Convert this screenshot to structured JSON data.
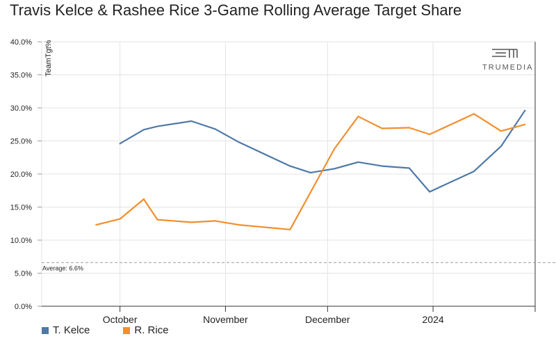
{
  "title": "Travis Kelce & Rashee Rice 3-Game Rolling Average Target Share",
  "logo": {
    "text": "TRUMEDIA",
    "icon": "trumedia-logo-icon"
  },
  "chart_data": {
    "type": "line",
    "ylabel": "TeamTgt%",
    "ylim": [
      0,
      40
    ],
    "y_ticks": [
      {
        "value": 0,
        "label": "0.0%"
      },
      {
        "value": 5,
        "label": "5.0%"
      },
      {
        "value": 10,
        "label": "10.0%"
      },
      {
        "value": 15,
        "label": "15.0%"
      },
      {
        "value": 20,
        "label": "20.0%"
      },
      {
        "value": 25,
        "label": "25.0%"
      },
      {
        "value": 30,
        "label": "30.0%"
      },
      {
        "value": 35,
        "label": "35.0%"
      },
      {
        "value": 40,
        "label": "40.0%"
      }
    ],
    "xlim": [
      "2023-09-08",
      "2024-01-31"
    ],
    "x_ticks": [
      {
        "date": "2023-10-01",
        "label": "October"
      },
      {
        "date": "2023-11-01",
        "label": "November"
      },
      {
        "date": "2023-12-01",
        "label": "December"
      },
      {
        "date": "2024-01-01",
        "label": "2024"
      }
    ],
    "grid": true,
    "reference_line": {
      "value": 6.6,
      "label": "Average: 6.6%"
    },
    "legend_position": "bottom-left",
    "series": [
      {
        "name": "T. Kelce",
        "color": "#4e79a7",
        "points": [
          {
            "x": "2023-10-01",
            "y": 24.6
          },
          {
            "x": "2023-10-08",
            "y": 26.7
          },
          {
            "x": "2023-10-12",
            "y": 27.2
          },
          {
            "x": "2023-10-22",
            "y": 28.0
          },
          {
            "x": "2023-10-29",
            "y": 26.8
          },
          {
            "x": "2023-11-05",
            "y": 24.8
          },
          {
            "x": "2023-11-20",
            "y": 21.2
          },
          {
            "x": "2023-11-26",
            "y": 20.2
          },
          {
            "x": "2023-12-03",
            "y": 20.8
          },
          {
            "x": "2023-12-10",
            "y": 21.8
          },
          {
            "x": "2023-12-17",
            "y": 21.2
          },
          {
            "x": "2023-12-25",
            "y": 20.9
          },
          {
            "x": "2023-12-31",
            "y": 17.3
          },
          {
            "x": "2024-01-13",
            "y": 20.4
          },
          {
            "x": "2024-01-21",
            "y": 24.2
          },
          {
            "x": "2024-01-28",
            "y": 29.6
          }
        ]
      },
      {
        "name": "R. Rice",
        "color": "#f28e2b",
        "points": [
          {
            "x": "2023-09-24",
            "y": 12.3
          },
          {
            "x": "2023-10-01",
            "y": 13.2
          },
          {
            "x": "2023-10-08",
            "y": 16.2
          },
          {
            "x": "2023-10-12",
            "y": 13.1
          },
          {
            "x": "2023-10-22",
            "y": 12.7
          },
          {
            "x": "2023-10-29",
            "y": 12.9
          },
          {
            "x": "2023-11-05",
            "y": 12.3
          },
          {
            "x": "2023-11-20",
            "y": 11.6
          },
          {
            "x": "2023-12-03",
            "y": 23.8
          },
          {
            "x": "2023-12-10",
            "y": 28.7
          },
          {
            "x": "2023-12-17",
            "y": 26.9
          },
          {
            "x": "2023-12-25",
            "y": 27.0
          },
          {
            "x": "2023-12-31",
            "y": 26.0
          },
          {
            "x": "2024-01-13",
            "y": 29.1
          },
          {
            "x": "2024-01-21",
            "y": 26.5
          },
          {
            "x": "2024-01-28",
            "y": 27.5
          }
        ]
      }
    ]
  }
}
